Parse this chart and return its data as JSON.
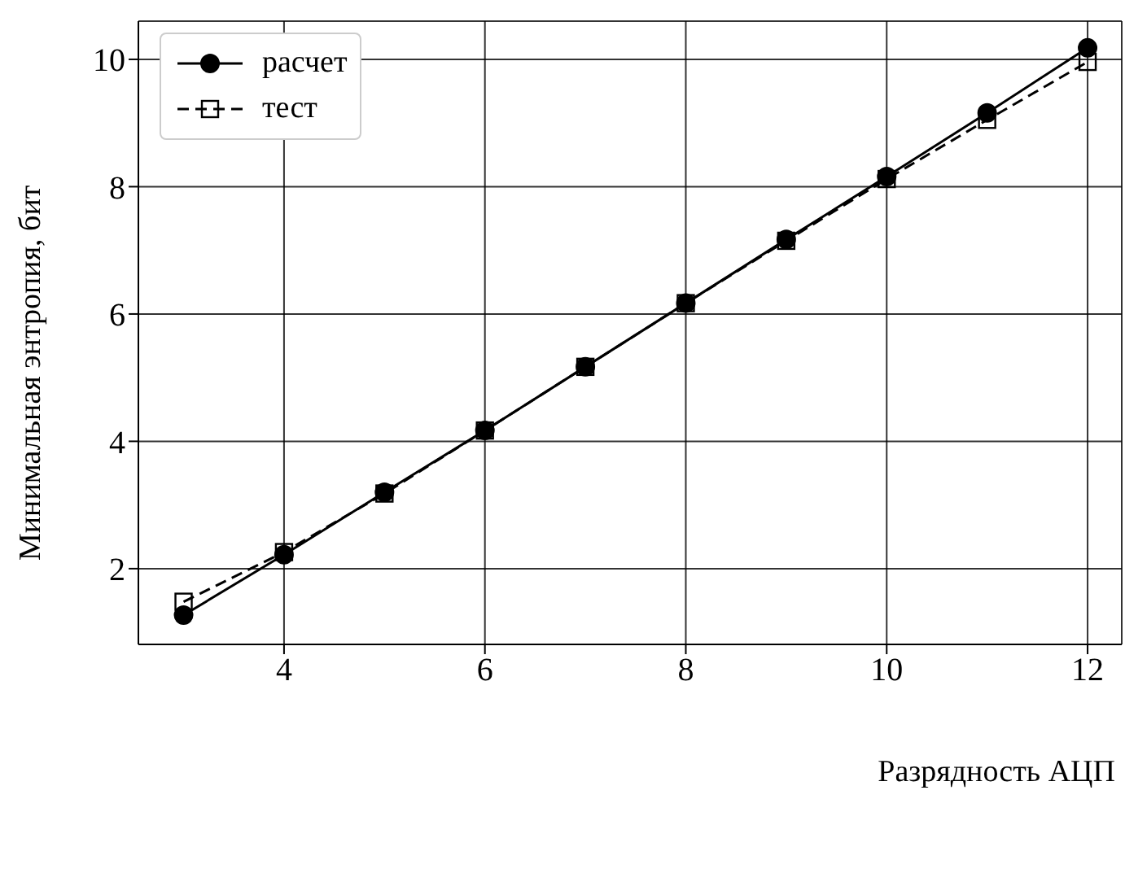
{
  "chart_data": {
    "type": "line",
    "xlabel": "Разрядность АЦП",
    "ylabel": "Минимальная энтропия, бит",
    "x": [
      3,
      4,
      5,
      6,
      7,
      8,
      9,
      10,
      11,
      12
    ],
    "series": [
      {
        "name": "расчет",
        "color": "#000000",
        "marker": "circle",
        "line_style": "solid",
        "values": [
          1.27,
          2.22,
          3.2,
          4.17,
          5.17,
          6.17,
          7.17,
          8.16,
          9.16,
          10.18
        ]
      },
      {
        "name": "тест",
        "color": "#000000",
        "marker": "square",
        "line_style": "dashed",
        "values": [
          1.48,
          2.26,
          3.18,
          4.17,
          5.17,
          6.17,
          7.15,
          8.12,
          9.05,
          9.96
        ]
      }
    ],
    "xlim": [
      2.55,
      12.34
    ],
    "xticks": [
      4,
      6,
      8,
      10,
      12
    ],
    "ylim": [
      0.81,
      10.6
    ],
    "yticks": [
      2,
      4,
      6,
      8,
      10
    ],
    "grid": true,
    "legend": "top left"
  }
}
